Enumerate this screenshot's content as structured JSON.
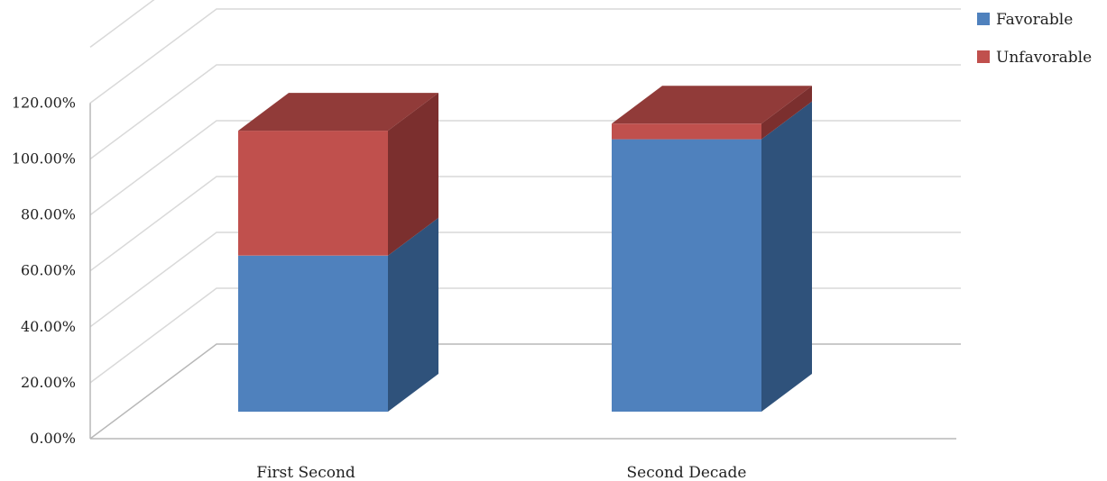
{
  "chart_data": {
    "type": "bar",
    "stacked": true,
    "three_d": true,
    "categories": [
      "First Second",
      "Second Decade"
    ],
    "series": [
      {
        "name": "Favorable",
        "values": [
          0.55,
          0.96
        ]
      },
      {
        "name": "Unfavorable",
        "values": [
          0.44,
          0.055
        ]
      }
    ],
    "ylim": [
      0,
      1.2
    ],
    "yticks": [
      "0.00%",
      "20.00%",
      "40.00%",
      "60.00%",
      "80.00%",
      "100.00%",
      "120.00%"
    ],
    "grid": true,
    "legend_position": "top-right",
    "colors": {
      "Favorable": "#4f81bd",
      "Unfavorable": "#c0504d"
    },
    "shade_colors": {
      "Favorable": {
        "side": "#2f527b",
        "top": "#3f6a9d"
      },
      "Unfavorable": {
        "side": "#7b2f2e",
        "top": "#913b39"
      }
    }
  }
}
